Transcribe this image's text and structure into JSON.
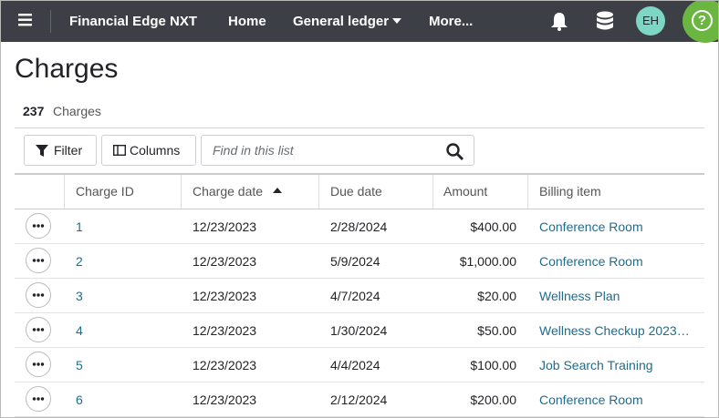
{
  "nav": {
    "product": "Financial Edge NXT",
    "links": [
      "Home",
      "General ledger",
      "More..."
    ],
    "avatar": "EH",
    "help": "?"
  },
  "header": {
    "title": "Charges",
    "count": "237",
    "count_label": "Charges"
  },
  "toolbar": {
    "filter": "Filter",
    "columns": "Columns",
    "search_placeholder": "Find in this list"
  },
  "table": {
    "columns": [
      "Charge ID",
      "Charge date",
      "Due date",
      "Amount",
      "Billing item"
    ],
    "rows": [
      [
        "1",
        "12/23/2023",
        "2/28/2024",
        "$400.00",
        "Conference Room"
      ],
      [
        "2",
        "12/23/2023",
        "5/9/2024",
        "$1,000.00",
        "Conference Room"
      ],
      [
        "3",
        "12/23/2023",
        "4/7/2024",
        "$20.00",
        "Wellness Plan"
      ],
      [
        "4",
        "12/23/2023",
        "1/30/2024",
        "$50.00",
        "Wellness Checkup 2023…"
      ],
      [
        "5",
        "12/23/2023",
        "4/4/2024",
        "$100.00",
        "Job Search Training"
      ],
      [
        "6",
        "12/23/2023",
        "2/12/2024",
        "$200.00",
        "Conference Room"
      ]
    ]
  }
}
